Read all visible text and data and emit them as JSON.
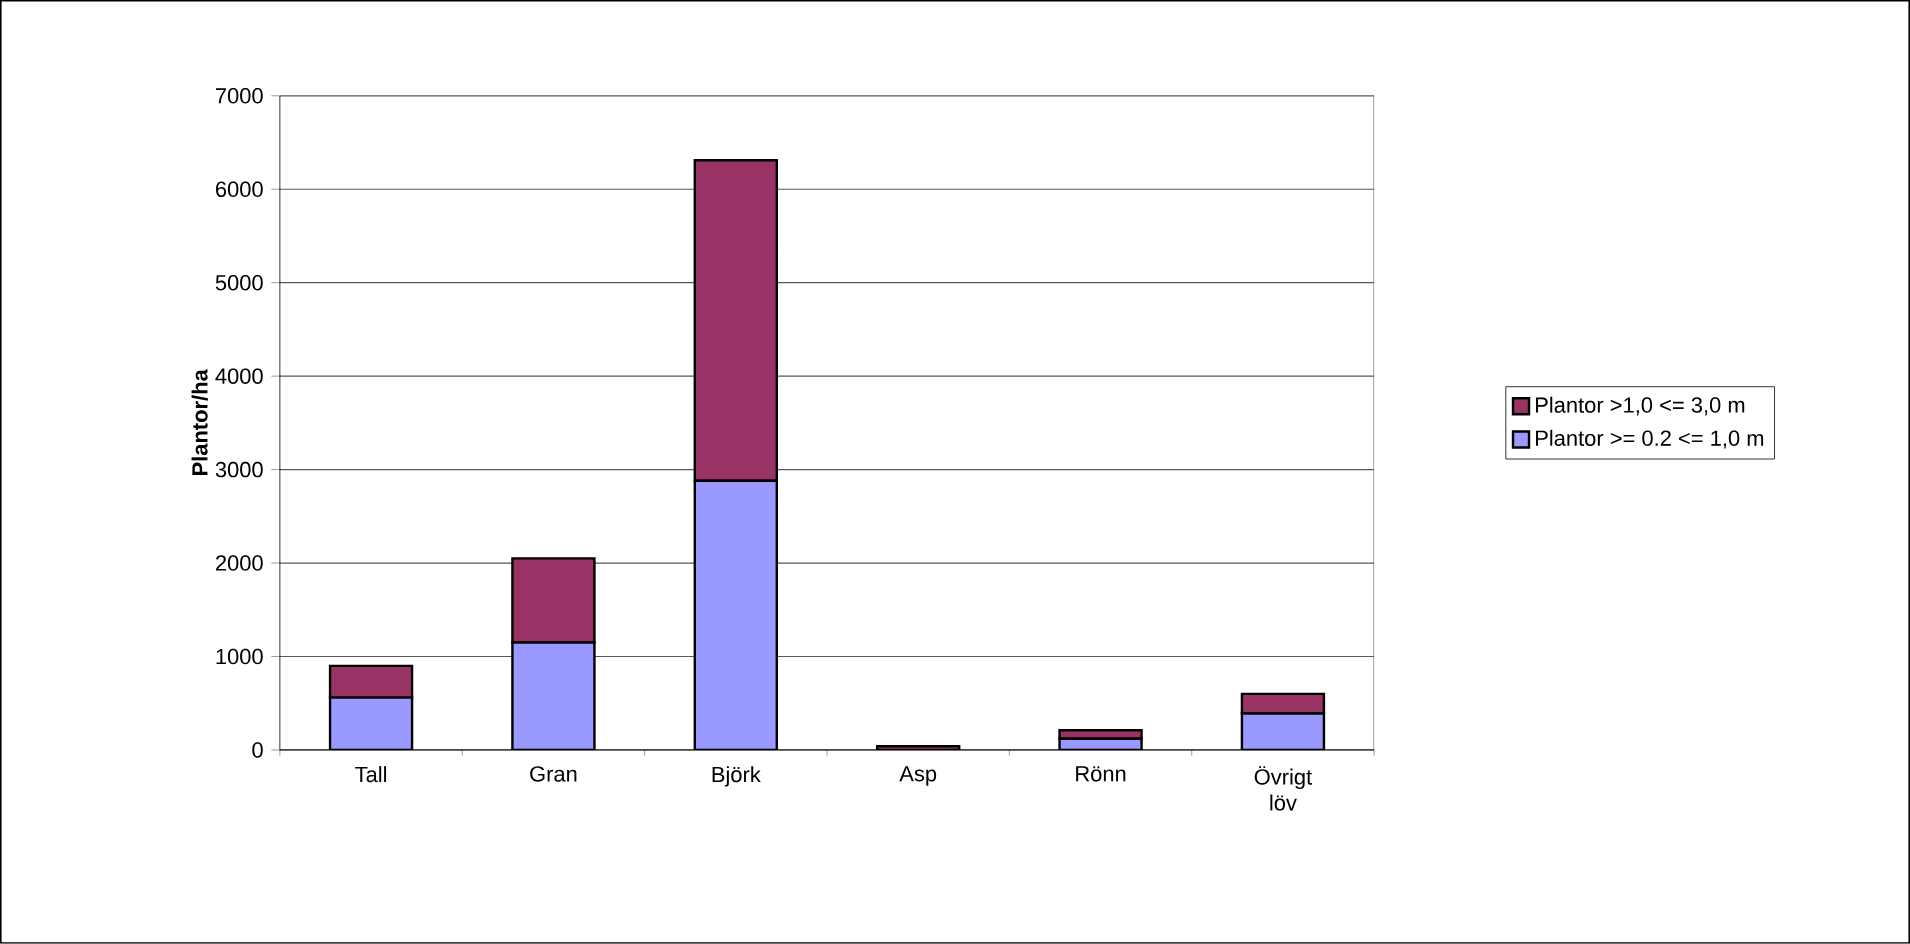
{
  "chart_data": {
    "type": "bar",
    "stacked": true,
    "ylabel": "Plantor/ha",
    "categories": [
      "Tall",
      "Gran",
      "Björk",
      "Asp",
      "Rönn",
      "Övrigt löv"
    ],
    "series": [
      {
        "name": "Plantor >= 0.2 <= 1,0 m",
        "color": "#9999ff",
        "values": [
          560,
          1150,
          2880,
          null,
          120,
          390
        ]
      },
      {
        "name": "Plantor >1,0 <= 3,0 m",
        "color": "#993366",
        "values": [
          340,
          900,
          3430,
          40,
          90,
          210
        ]
      }
    ],
    "ylim": [
      0,
      7000
    ],
    "yticks": [
      0,
      1000,
      2000,
      3000,
      4000,
      5000,
      6000,
      7000
    ],
    "grid": "y",
    "legend": "right"
  }
}
